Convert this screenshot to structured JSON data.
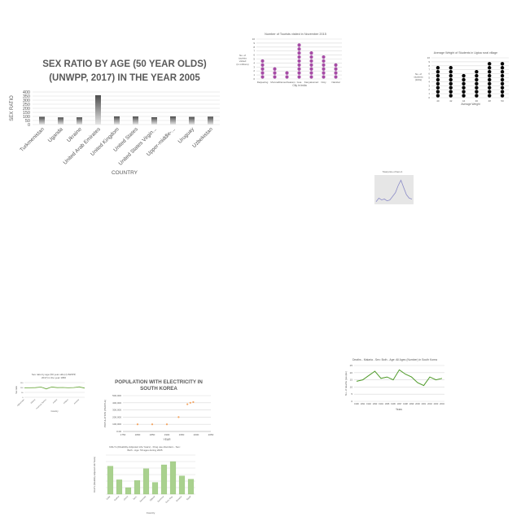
{
  "chart_data": [
    {
      "id": "sex_ratio_2005",
      "type": "bar",
      "title": "SEX RATIO BY AGE (50 YEAR OLDS) (UNWPP, 2017) IN THE YEAR 2005",
      "title_lines": [
        "SEX RATIO BY AGE (50 YEAR OLDS)",
        "(UNWPP, 2017) IN THE YEAR 2005"
      ],
      "xlabel": "COUNTRY",
      "ylabel": "SEX RATIO",
      "ylim": [
        0,
        400
      ],
      "yticks": [
        0,
        50,
        100,
        150,
        200,
        250,
        300,
        350,
        400
      ],
      "categories": [
        "Turkmenistan",
        "Uganda",
        "Ukraine",
        "United Arab Emirates",
        "United Kingdom",
        "United States",
        "United States Virgin...",
        "Upper-middle-...",
        "Uruguay",
        "Uzbekistan"
      ],
      "values": [
        95,
        88,
        89,
        360,
        100,
        99,
        90,
        100,
        94,
        97
      ],
      "colors": {
        "bar_top": "#4d4d4d",
        "bar_bottom": "#e6e6e6"
      }
    },
    {
      "id": "tourists",
      "type": "scatter",
      "title": "Number of Tourists visited in November 2015",
      "xlabel": "City in India",
      "ylabel_lines": [
        "No. of",
        "tourists",
        "visited",
        "(in millions)"
      ],
      "ylim": [
        0,
        10
      ],
      "yticks": [
        0,
        1,
        2,
        3,
        4,
        5,
        6,
        7,
        8,
        9,
        10
      ],
      "categories": [
        "Darjeeling",
        "Munnar",
        "Rameshwaram",
        "Goa",
        "Kanyakumari",
        "Ooty",
        "Nainital"
      ],
      "categories_shown": [
        "Darjeeling",
        "Munnar",
        "Rameshwaram",
        "Goa",
        "Kanyakumari",
        "Ooty",
        "Nainital"
      ],
      "values": [
        5,
        3,
        2,
        9,
        7,
        6,
        4
      ],
      "colors": {
        "dot": "#a64ca6"
      }
    },
    {
      "id": "weights",
      "type": "scatter",
      "title": "Average Weight of Students in Ugtoa rural village",
      "xlabel": "Average Weight",
      "ylabel_lines": [
        "No. of",
        "students",
        "(100s)"
      ],
      "ylim": [
        0,
        10
      ],
      "yticks": [
        0,
        1,
        2,
        3,
        4,
        5,
        6,
        7,
        8,
        9,
        10
      ],
      "categories": [
        "40",
        "42",
        "44",
        "46",
        "48",
        "50"
      ],
      "values": [
        8,
        8,
        6,
        7,
        9,
        9
      ],
      "colors": {
        "dot": "#000000"
      }
    },
    {
      "id": "small_line",
      "type": "line",
      "title": "Total price of Item A",
      "xlabel": "",
      "ylabel": "",
      "x": [
        1,
        2,
        3,
        4,
        5,
        6,
        7,
        8,
        9,
        10,
        11,
        12,
        13,
        14
      ],
      "values": [
        2,
        6,
        4,
        5,
        3,
        4,
        8,
        12,
        20,
        26,
        18,
        10,
        6,
        5
      ],
      "ylim": [
        0,
        30
      ],
      "colors": {
        "line": "#8c8cc8",
        "bg": "#e6e6e6"
      }
    },
    {
      "id": "sex_ratio_1950",
      "type": "line",
      "title_lines": [
        "Sex ratio by age (50 year olds) (UNWPP,",
        "2017) in the year 1950"
      ],
      "xlabel": "Country",
      "ylabel": "Sex ratio",
      "ylim": [
        0,
        150
      ],
      "yticks": [
        0,
        50,
        100,
        150
      ],
      "categories": [
        "Afghanistan",
        "Africa",
        "Albania",
        "Algeria",
        "American Samoa",
        "Andorra",
        "Angola",
        "Anguilla",
        "Antigua",
        "Argentina",
        "Armenia",
        "Aruba"
      ],
      "categories_shown": [
        "Afghanistan",
        "Albania",
        "American Samoa",
        "Angola",
        "Antigua",
        "Armenia"
      ],
      "values": [
        95,
        97,
        98,
        105,
        85,
        106,
        98,
        100,
        97,
        99,
        107,
        93
      ],
      "colors": {
        "line": "#6aaa3a"
      }
    },
    {
      "id": "electricity",
      "type": "scatter",
      "title_lines": [
        "POPULATION WITH ELECTRICITY IN",
        "SOUTH KOREA"
      ],
      "xlabel": "YEAR",
      "ylabel": "POPULATION (PEOPLE)",
      "xlim": [
        1750,
        2000
      ],
      "xticks": [
        1750,
        1800,
        1850,
        1900,
        1950,
        2000,
        2050
      ],
      "ylim": [
        0,
        500000
      ],
      "yticks": [
        0,
        100000,
        200000,
        300000,
        400000,
        500000
      ],
      "ytick_labels": [
        "0.00",
        "100,000",
        "200,000",
        "300,000",
        "400,000",
        "500,000"
      ],
      "x": [
        1800,
        1850,
        1900,
        1940,
        1970,
        1980,
        1990
      ],
      "values": [
        100000,
        100000,
        100000,
        200000,
        380000,
        400000,
        410000
      ],
      "colors": {
        "dot": "#f4a460"
      }
    },
    {
      "id": "deaths_malaria",
      "type": "line",
      "title": "Deaths - Malaria - Sex: Both - Age: All Ages (Number) in South Korea",
      "xlabel": "Years",
      "ylabel": "No. of deaths (people)",
      "ylim": [
        0,
        25
      ],
      "yticks": [
        0,
        5,
        10,
        15,
        20,
        25
      ],
      "categories": [
        "1990",
        "1991",
        "1992",
        "1993",
        "1994",
        "1995",
        "1996",
        "1997",
        "1998",
        "1999",
        "2000",
        "2001",
        "2002",
        "2003",
        "2004"
      ],
      "values": [
        14,
        15,
        18,
        21,
        16,
        17,
        15,
        22,
        19,
        17,
        13,
        11,
        17,
        15,
        16
      ],
      "colors": {
        "line": "#4e9a28"
      }
    },
    {
      "id": "dalys",
      "type": "bar",
      "title_lines": [
        "DALYs (Disability-Adjusted Life Years) - Drug use disorders - Sex:",
        "Both - Age: 50 ages during 2005"
      ],
      "xlabel": "Country",
      "ylabel": "DALYs (Disability-Adjusted Life Years)",
      "ylim": [
        0,
        6
      ],
      "categories": [
        "Cuba",
        "Cyprus",
        "Czech Republic",
        "Democratic Republic of Congo",
        "Denmark",
        "Djibouti",
        "Dominica",
        "Dominican Republic",
        "Ecuador",
        "Egypt"
      ],
      "categories_shown": [
        "Cuba",
        "Cyprus",
        "Czech",
        "Dem.",
        "Denmark",
        "Djibouti",
        "Dominica",
        "Dom. Rep.",
        "Ecuador",
        "Egypt"
      ],
      "values": [
        4.3,
        2.2,
        1.0,
        2.1,
        3.9,
        1.8,
        4.5,
        5.0,
        2.8,
        2.3
      ],
      "colors": {
        "bar": "#a9d18e",
        "edge": "#8fbf70"
      }
    }
  ]
}
